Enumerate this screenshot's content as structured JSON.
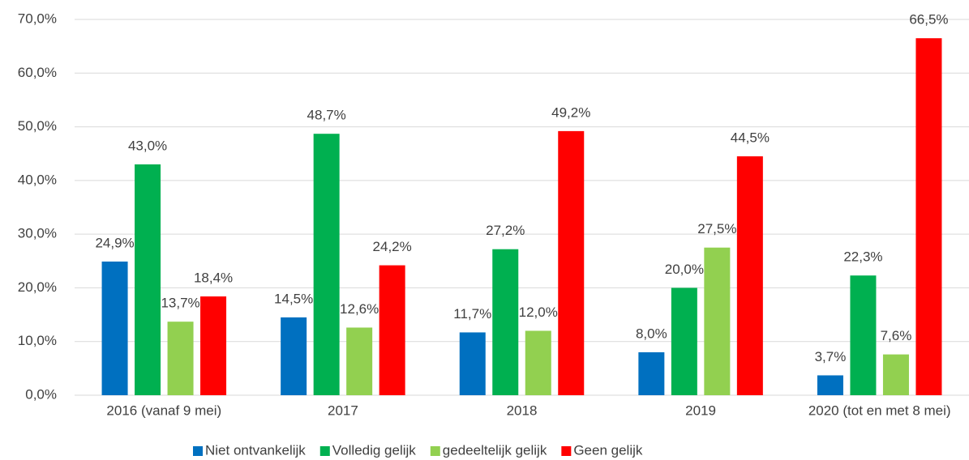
{
  "chart_data": {
    "type": "bar",
    "categories": [
      "2016 (vanaf 9 mei)",
      "2017",
      "2018",
      "2019",
      "2020 (tot en met 8 mei)"
    ],
    "series": [
      {
        "name": "Niet ontvankelijk",
        "color": "#0070c0",
        "values": [
          24.9,
          14.5,
          11.7,
          8.0,
          3.7
        ],
        "value_labels": [
          "24,9%",
          "14,5%",
          "11,7%",
          "8,0%",
          "3,7%"
        ]
      },
      {
        "name": "Volledig gelijk",
        "color": "#00b050",
        "values": [
          43.0,
          48.7,
          27.2,
          20.0,
          22.3
        ],
        "value_labels": [
          "43,0%",
          "48,7%",
          "27,2%",
          "20,0%",
          "22,3%"
        ]
      },
      {
        "name": "gedeeltelijk gelijk",
        "color": "#92d050",
        "values": [
          13.7,
          12.6,
          12.0,
          27.5,
          7.6
        ],
        "value_labels": [
          "13,7%",
          "12,6%",
          "12,0%",
          "27,5%",
          "7,6%"
        ]
      },
      {
        "name": "Geen gelijk",
        "color": "#ff0000",
        "values": [
          18.4,
          24.2,
          49.2,
          44.5,
          66.5
        ],
        "value_labels": [
          "18,4%",
          "24,2%",
          "49,2%",
          "44,5%",
          "66,5%"
        ]
      }
    ],
    "ylim": [
      0,
      70
    ],
    "yticks": [
      {
        "value": 0,
        "label": "0,0%"
      },
      {
        "value": 10,
        "label": "10,0%"
      },
      {
        "value": 20,
        "label": "20,0%"
      },
      {
        "value": 30,
        "label": "30,0%"
      },
      {
        "value": 40,
        "label": "40,0%"
      },
      {
        "value": 50,
        "label": "50,0%"
      },
      {
        "value": 60,
        "label": "60,0%"
      },
      {
        "value": 70,
        "label": "70,0%"
      }
    ],
    "grid": true,
    "legend": "bottom"
  }
}
